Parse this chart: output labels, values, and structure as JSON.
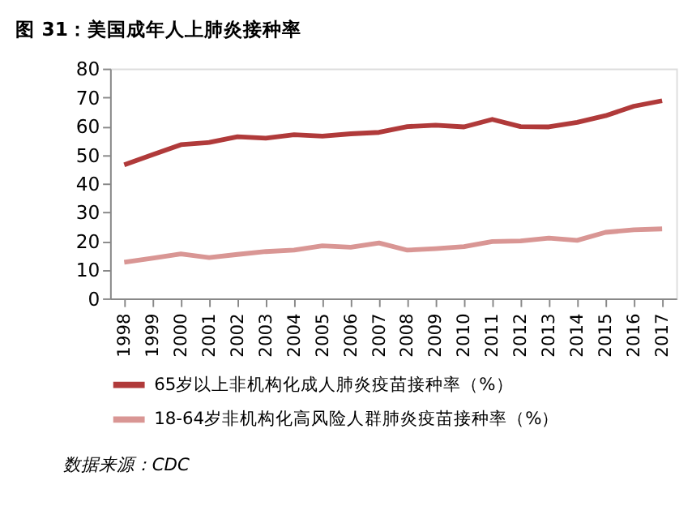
{
  "chart_data": {
    "type": "line",
    "title": "图 31：美国成年人上肺炎接种率",
    "categories": [
      "1998",
      "1999",
      "2000",
      "2001",
      "2002",
      "2003",
      "2004",
      "2005",
      "2006",
      "2007",
      "2008",
      "2009",
      "2010",
      "2011",
      "2012",
      "2013",
      "2014",
      "2015",
      "2016",
      "2017"
    ],
    "series": [
      {
        "name": "65岁以上非机构化成人肺炎疫苗接种率（%）",
        "color": "#b03a3a",
        "values": [
          46.5,
          50,
          53.5,
          54.3,
          56.3,
          55.8,
          57,
          56.5,
          57.3,
          57.8,
          59.8,
          60.3,
          59.7,
          62.3,
          59.8,
          59.7,
          61.3,
          63.6,
          66.9,
          68.8
        ]
      },
      {
        "name": "18-64岁非机构化高风险人群肺炎疫苗接种率（%）",
        "color": "#d99694",
        "values": [
          12.6,
          14,
          15.5,
          14.2,
          15.3,
          16.3,
          16.8,
          18.3,
          17.8,
          19.3,
          16.8,
          17.3,
          18,
          19.8,
          20,
          21,
          20.2,
          23,
          23.9,
          24.2
        ]
      }
    ],
    "ylim": [
      0,
      80
    ],
    "yticks": [
      0,
      10,
      20,
      30,
      40,
      50,
      60,
      70,
      80
    ],
    "grid": false,
    "legend": "bottom",
    "marker": "none",
    "line_style": "solid",
    "annotations": [
      "数据来源：CDC"
    ]
  }
}
